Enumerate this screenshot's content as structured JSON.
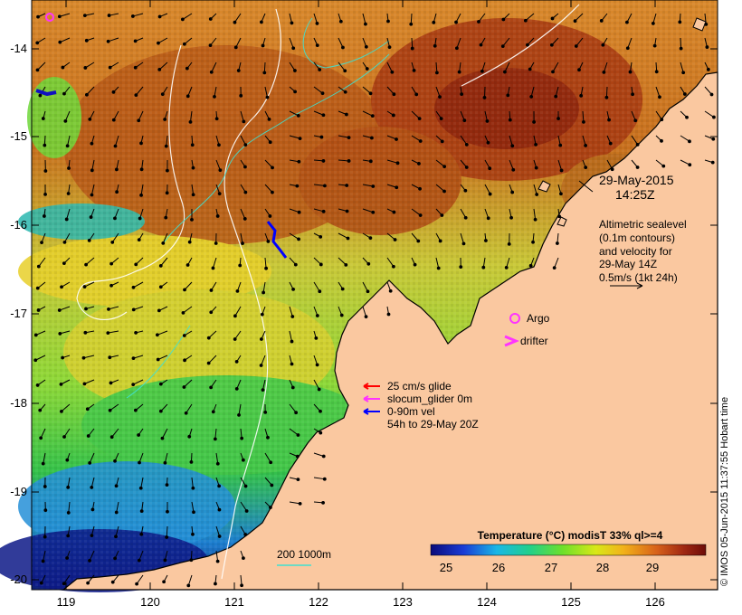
{
  "map": {
    "title_date": "29-May-2015",
    "title_time": "14:25Z",
    "altimetry_note": [
      "Altimetric sealevel",
      "(0.1m contours)",
      "and velocity for",
      "29-May 14Z",
      "0.5m/s (1kt 24h)"
    ],
    "legend_argo": "Argo",
    "legend_drifter": "drifter",
    "glider_legend": [
      {
        "label": "25 cm/s glide",
        "color": "#ff0000"
      },
      {
        "label": "slocum_glider 0m",
        "color": "#ff33ff"
      },
      {
        "label": "0-90m vel",
        "color": "#0000ff"
      },
      {
        "label": "54h to 29-May 20Z",
        "color": ""
      }
    ],
    "depth_legend": "200  1000m",
    "colorbar_title": "Temperature (°C) modisT 33% ql>=4",
    "colorbar_ticks": [
      "25",
      "26",
      "27",
      "28",
      "29"
    ],
    "x_ticks": [
      "119",
      "120",
      "121",
      "122",
      "123",
      "124",
      "125",
      "126"
    ],
    "y_ticks": [
      "-14",
      "-15",
      "-16",
      "-17",
      "-18",
      "-19",
      "-20"
    ],
    "credit": "© IMOS 05-Jun-2015 11:37:55 Hobart time"
  }
}
